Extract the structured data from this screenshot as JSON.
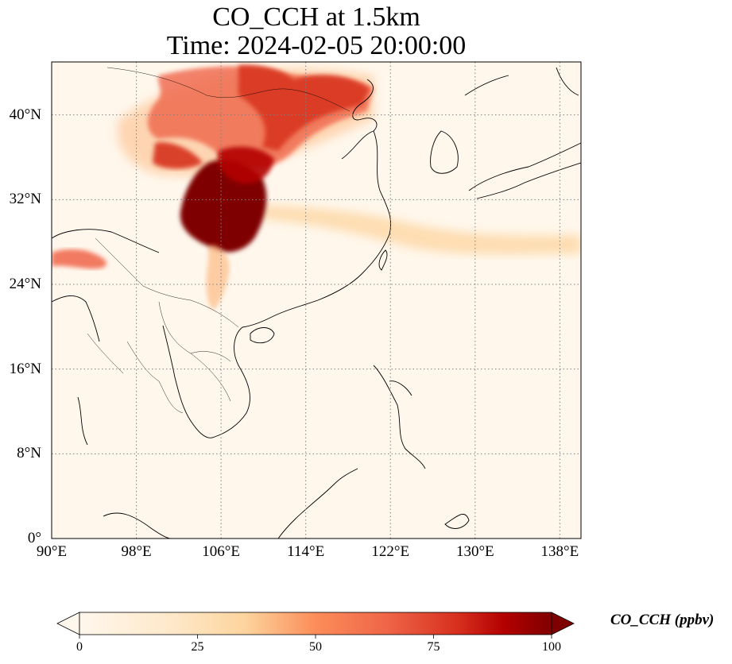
{
  "title": {
    "line1": "CO_CCH at 1.5km",
    "line2": "Time: 2024-02-05 20:00:00"
  },
  "map": {
    "projection": "PlateCarree",
    "lon_range": [
      90,
      140
    ],
    "lat_range": [
      0,
      45
    ],
    "x_ticks": [
      {
        "value": 90,
        "label": "90°E"
      },
      {
        "value": 98,
        "label": "98°E"
      },
      {
        "value": 106,
        "label": "106°E"
      },
      {
        "value": 114,
        "label": "114°E"
      },
      {
        "value": 122,
        "label": "122°E"
      },
      {
        "value": 130,
        "label": "130°E"
      },
      {
        "value": 138,
        "label": "138°E"
      }
    ],
    "y_ticks": [
      {
        "value": 0,
        "label": "0°"
      },
      {
        "value": 8,
        "label": "8°N"
      },
      {
        "value": 16,
        "label": "16°N"
      },
      {
        "value": 24,
        "label": "24°N"
      },
      {
        "value": 32,
        "label": "32°N"
      },
      {
        "value": 40,
        "label": "40°N"
      }
    ],
    "gridlines": "dotted",
    "coastlines": true,
    "borders": true
  },
  "colorbar": {
    "colormap": "OrRd",
    "min": 0,
    "max": 100,
    "extend": "both",
    "ticks": [
      "0",
      "25",
      "50",
      "75",
      "100"
    ],
    "label": "CO_CCH (ppbv)"
  },
  "colors": {
    "low": "#fff7ec",
    "mid": "#fdbb84",
    "high": "#d7301f",
    "max": "#7f0000"
  }
}
